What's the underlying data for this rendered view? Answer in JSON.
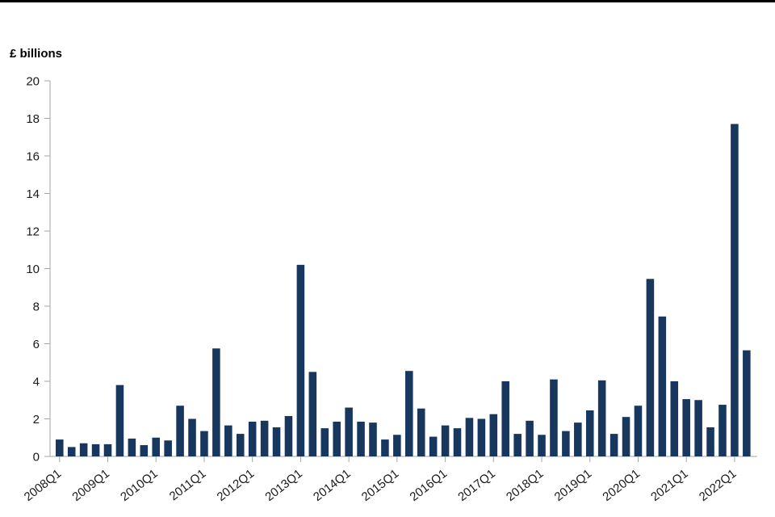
{
  "page": {
    "ylabel_title": "£ billions"
  },
  "chart_data": {
    "type": "bar",
    "title": "",
    "xlabel": "",
    "ylabel": "£ billions",
    "ylim": [
      0,
      20
    ],
    "ytick_step": 2,
    "xtick_every": 4,
    "grid": false,
    "legend": "none",
    "bar_color": "#17375e",
    "axis_color": "#a6a6a6",
    "text_color": "#1a1a1a",
    "y_ticks": [
      "0",
      "2",
      "4",
      "6",
      "8",
      "10",
      "12",
      "14",
      "16",
      "18",
      "20"
    ],
    "x_ticks": [
      "2008Q1",
      "2009Q1",
      "2010Q1",
      "2011Q1",
      "2012Q1",
      "2013Q1",
      "2014Q1",
      "2015Q1",
      "2016Q1",
      "2017Q1",
      "2018Q1",
      "2019Q1",
      "2020Q1",
      "2021Q1",
      "2022Q1"
    ],
    "categories": [
      "2008Q1",
      "2008Q2",
      "2008Q3",
      "2008Q4",
      "2009Q1",
      "2009Q2",
      "2009Q3",
      "2009Q4",
      "2010Q1",
      "2010Q2",
      "2010Q3",
      "2010Q4",
      "2011Q1",
      "2011Q2",
      "2011Q3",
      "2011Q4",
      "2012Q1",
      "2012Q2",
      "2012Q3",
      "2012Q4",
      "2013Q1",
      "2013Q2",
      "2013Q3",
      "2013Q4",
      "2014Q1",
      "2014Q2",
      "2014Q3",
      "2014Q4",
      "2015Q1",
      "2015Q2",
      "2015Q3",
      "2015Q4",
      "2016Q1",
      "2016Q2",
      "2016Q3",
      "2016Q4",
      "2017Q1",
      "2017Q2",
      "2017Q3",
      "2017Q4",
      "2018Q1",
      "2018Q2",
      "2018Q3",
      "2018Q4",
      "2019Q1",
      "2019Q2",
      "2019Q3",
      "2019Q4",
      "2020Q1",
      "2020Q2",
      "2020Q3",
      "2020Q4",
      "2021Q1",
      "2021Q2",
      "2021Q3",
      "2021Q4",
      "2022Q1",
      "2022Q2"
    ],
    "values": [
      0.9,
      0.5,
      0.7,
      0.65,
      0.65,
      3.8,
      0.95,
      0.6,
      1.0,
      0.85,
      2.7,
      2.0,
      1.35,
      5.75,
      1.65,
      1.2,
      1.85,
      1.9,
      1.55,
      2.15,
      10.2,
      4.5,
      1.5,
      1.85,
      2.6,
      1.85,
      1.8,
      0.9,
      1.15,
      4.55,
      2.55,
      1.05,
      1.65,
      1.5,
      2.05,
      2.0,
      2.25,
      4.0,
      1.2,
      1.9,
      1.15,
      4.1,
      1.35,
      1.8,
      2.45,
      4.05,
      1.2,
      2.1,
      2.7,
      9.45,
      7.45,
      4.0,
      3.05,
      3.0,
      1.55,
      2.75,
      17.7,
      5.65
    ]
  }
}
